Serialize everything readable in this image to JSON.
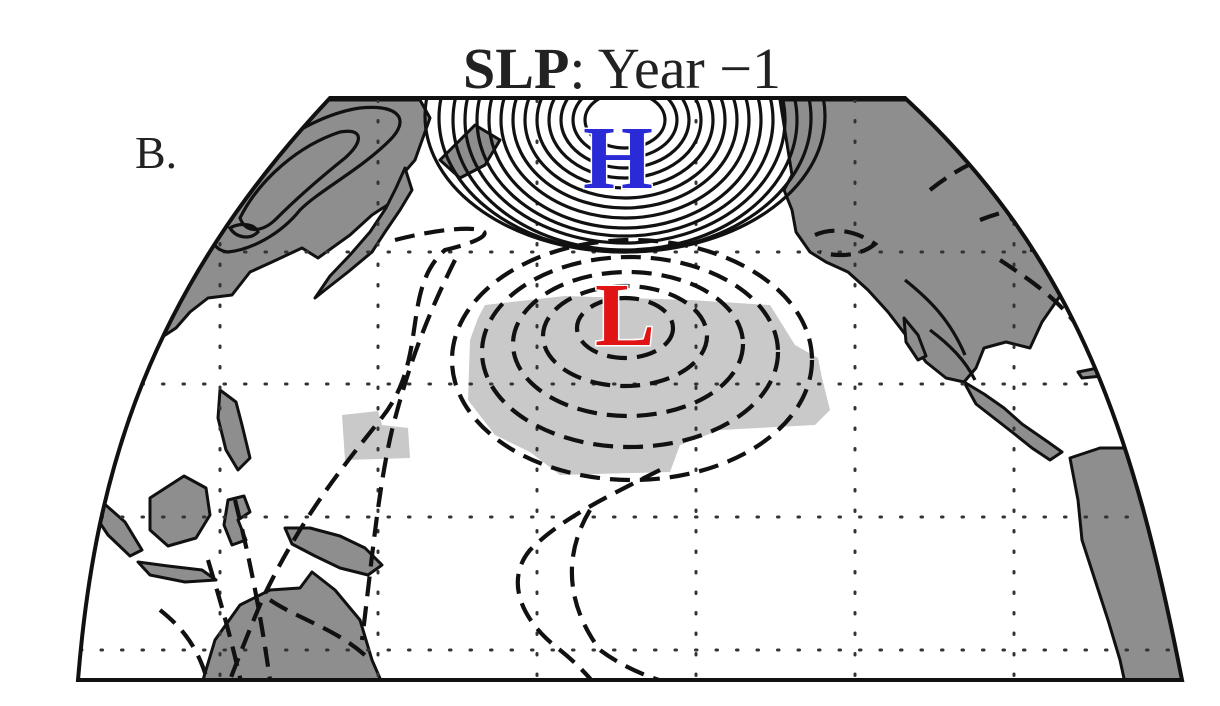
{
  "figure": {
    "title_bold": "SLP",
    "title_rest": ": Year −1",
    "panel_label": "B.",
    "high_center_label": "H",
    "low_center_label": "L",
    "colors": {
      "high_label": "#2a2ad6",
      "low_label": "#e01414",
      "land": "#8e8e8e",
      "significance_shading": "#c9c9c9",
      "contours": "#111111"
    },
    "contour_styles": {
      "positive_anomaly": "solid",
      "negative_anomaly": "dashed"
    },
    "region": "Pacific basin"
  }
}
